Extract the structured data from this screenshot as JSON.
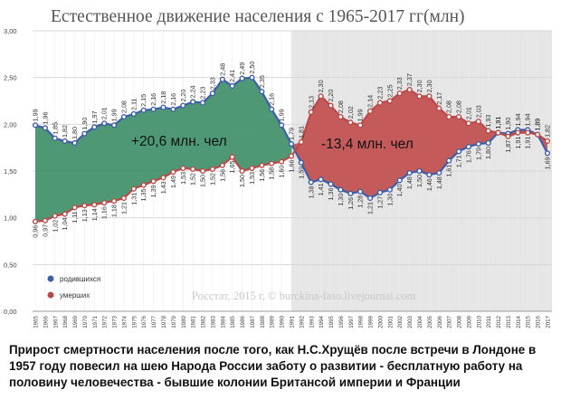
{
  "chart_data": {
    "type": "area",
    "title": "Естественное движение населения с 1965-2017 гг(млн)",
    "x": [
      1965,
      1966,
      1967,
      1968,
      1969,
      1970,
      1971,
      1972,
      1973,
      1974,
      1975,
      1976,
      1977,
      1978,
      1979,
      1980,
      1981,
      1982,
      1983,
      1984,
      1985,
      1986,
      1987,
      1988,
      1989,
      1990,
      1991,
      1992,
      1993,
      1994,
      1995,
      1996,
      1997,
      1998,
      1999,
      2000,
      2001,
      2002,
      2003,
      2004,
      2005,
      2006,
      2007,
      2008,
      2009,
      2010,
      2011,
      2012,
      2013,
      2014,
      2015,
      2016,
      2017
    ],
    "x_tick_labels": [
      "1965",
      "1966",
      "1967",
      "1968",
      "1969",
      "1970",
      "1971",
      "1972",
      "1973",
      "1974",
      "1975",
      "1976",
      "1977",
      "1978",
      "1979",
      "1980",
      "1981",
      "1982",
      "1983",
      "1984",
      "1985",
      "1986",
      "1987",
      "1988",
      "1989",
      "1990",
      "1991",
      "1992",
      "1993",
      "1994",
      "1995",
      "1996",
      "1997",
      "1998",
      "1999",
      "2000",
      "2001",
      "2002",
      "2003",
      "2004",
      "2005",
      "2006",
      "2007",
      "2008",
      "2009",
      "2010",
      "2011",
      "2012",
      "2013",
      "2014",
      "2015",
      "2016",
      "2017"
    ],
    "ylim": [
      0,
      3
    ],
    "y_ticks": [
      "0,00",
      "0,50",
      "1,00",
      "1,50",
      "2,00",
      "2,50",
      "3,00"
    ],
    "series": [
      {
        "name": "родившихся",
        "color": "#3d5ea8",
        "values": [
          1.99,
          1.96,
          1.85,
          1.82,
          1.8,
          1.9,
          1.97,
          2.01,
          1.99,
          2.08,
          2.11,
          2.15,
          2.16,
          2.18,
          2.16,
          2.2,
          2.24,
          2.23,
          2.33,
          2.48,
          2.41,
          2.49,
          2.5,
          2.35,
          2.16,
          1.99,
          1.79,
          1.59,
          1.38,
          1.41,
          1.36,
          1.3,
          1.26,
          1.28,
          1.21,
          1.27,
          1.3,
          1.4,
          1.48,
          1.5,
          1.46,
          1.48,
          1.61,
          1.71,
          1.76,
          1.79,
          1.8,
          1.91,
          1.9,
          1.94,
          1.94,
          1.89,
          1.69
        ],
        "labels": [
          "1,99",
          "1,96",
          "1,85",
          "1,82",
          "1,80",
          "1,90",
          "1,97",
          "2,01",
          "1,99",
          "2,08",
          "2,11",
          "2,15",
          "2,16",
          "2,18",
          "2,16",
          "2,20",
          "2,24",
          "2,23",
          "2,33",
          "2,48",
          "2,41",
          "2,49",
          "2,50",
          "2,35",
          "2,16",
          "1,99",
          "1,79",
          "1,59",
          "1,38",
          "1,41",
          "1,36",
          "1,30",
          "1,26",
          "1,28",
          "1,21",
          "1,27",
          "1,30",
          "1,40",
          "1,48",
          "1,50",
          "1,46",
          "1,48",
          "1,61",
          "1,71",
          "1,76",
          "1,79",
          "1,80",
          "1,91",
          "1,90",
          "1,94",
          "1,94",
          "1,89",
          "1,69"
        ]
      },
      {
        "name": "умерших",
        "color": "#b94a48",
        "values": [
          0.96,
          0.97,
          1.02,
          1.04,
          1.11,
          1.13,
          1.14,
          1.16,
          1.18,
          1.21,
          1.31,
          1.35,
          1.39,
          1.43,
          1.49,
          1.53,
          1.52,
          1.5,
          1.52,
          1.56,
          1.65,
          1.5,
          1.53,
          1.56,
          1.58,
          1.6,
          1.66,
          1.81,
          2.13,
          2.3,
          2.2,
          2.08,
          2.02,
          1.99,
          2.14,
          2.23,
          2.25,
          2.33,
          2.37,
          2.3,
          2.3,
          2.17,
          2.08,
          2.08,
          2.01,
          2.03,
          1.93,
          1.91,
          1.87,
          1.91,
          1.91,
          1.89,
          1.82
        ],
        "labels": [
          "0,96",
          "0,97",
          "1,02",
          "1,04",
          "1,11",
          "1,13",
          "1,14",
          "1,16",
          "1,18",
          "1,21",
          "1,31",
          "1,35",
          "1,39",
          "1,43",
          "1,49",
          "1,53",
          "1,52",
          "1,50",
          "1,52",
          "1,56",
          "1,65",
          "1,50",
          "1,53",
          "1,56",
          "1,58",
          "1,60",
          "1,66",
          "1,81",
          "2,13",
          "2,30",
          "2,20",
          "2,08",
          "2,02",
          "1,99",
          "2,14",
          "2,23",
          "2,25",
          "2,33",
          "2,37",
          "2,30",
          "2,30",
          "2,17",
          "2,08",
          "2,08",
          "2,01",
          "2,03",
          "1,93",
          "1,91",
          "1,87",
          "1,91",
          "1,91",
          "1,89",
          "1,82"
        ]
      }
    ],
    "area_growth_color": "#3f8f6a",
    "area_loss_color": "#c04a4a",
    "annotations": {
      "growth": "+20,6 млн. чел",
      "loss": "-13,4 млн. чел"
    },
    "shaded_from_year": 1991,
    "watermark": "Росстат, 2015 г, © burckina-faso.livejournal.com",
    "legend_position": "bottom-left",
    "grid": true
  },
  "caption": "Прирост смертности населения после того, как Н.С.Хрущёв после встречи в Лондоне в 1957 году повесил на шею Народа России заботу о развитии - бесплатную работу на половину человечества - бывшие колонии Британсой империи и Франции"
}
